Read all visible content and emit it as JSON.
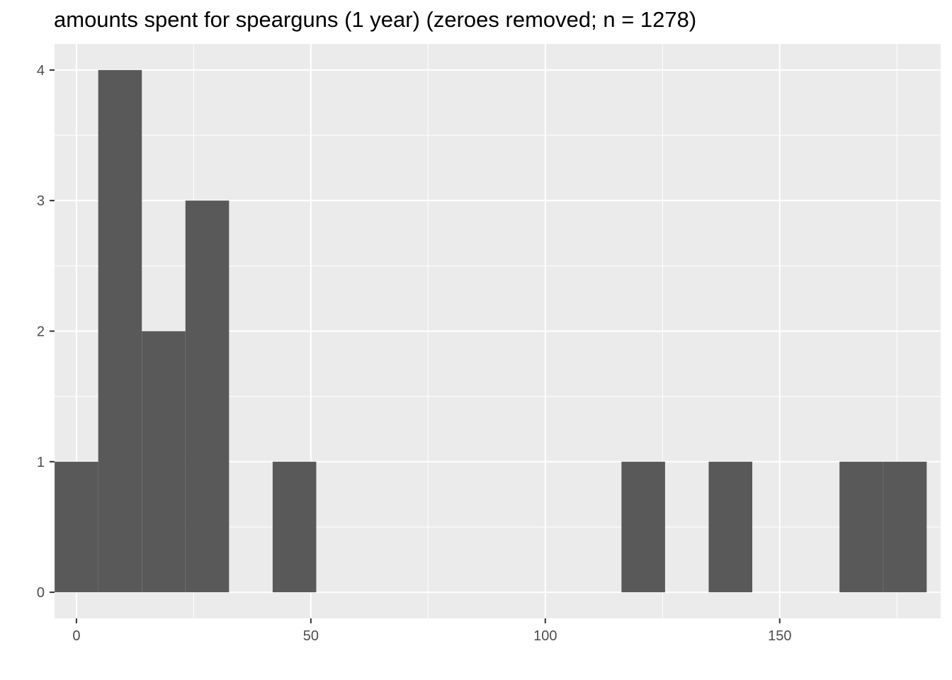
{
  "chart_data": {
    "type": "bar",
    "title": "amounts spent for spearguns (1 year) (zeroes removed; n = 1278)",
    "xlabel": "",
    "ylabel": "",
    "xlim": [
      -4.67,
      184.33
    ],
    "ylim": [
      -0.2,
      4.2
    ],
    "x_ticks": [
      0,
      50,
      100,
      150
    ],
    "y_ticks": [
      0,
      1,
      2,
      3,
      4
    ],
    "bin_width": 9.3,
    "bins": [
      {
        "x_start": -4.65,
        "x_end": 4.65,
        "count": 1
      },
      {
        "x_start": 4.65,
        "x_end": 13.95,
        "count": 4
      },
      {
        "x_start": 13.95,
        "x_end": 23.25,
        "count": 2
      },
      {
        "x_start": 23.25,
        "x_end": 32.55,
        "count": 3
      },
      {
        "x_start": 32.55,
        "x_end": 41.85,
        "count": 0
      },
      {
        "x_start": 41.85,
        "x_end": 51.15,
        "count": 1
      },
      {
        "x_start": 51.15,
        "x_end": 60.45,
        "count": 0
      },
      {
        "x_start": 60.45,
        "x_end": 69.75,
        "count": 0
      },
      {
        "x_start": 69.75,
        "x_end": 79.05,
        "count": 0
      },
      {
        "x_start": 79.05,
        "x_end": 88.35,
        "count": 0
      },
      {
        "x_start": 88.35,
        "x_end": 97.65,
        "count": 0
      },
      {
        "x_start": 97.65,
        "x_end": 106.95,
        "count": 0
      },
      {
        "x_start": 106.95,
        "x_end": 116.25,
        "count": 0
      },
      {
        "x_start": 116.25,
        "x_end": 125.55,
        "count": 1
      },
      {
        "x_start": 125.55,
        "x_end": 134.85,
        "count": 0
      },
      {
        "x_start": 134.85,
        "x_end": 144.15,
        "count": 1
      },
      {
        "x_start": 144.15,
        "x_end": 153.45,
        "count": 0
      },
      {
        "x_start": 153.45,
        "x_end": 162.75,
        "count": 0
      },
      {
        "x_start": 162.75,
        "x_end": 172.05,
        "count": 1
      },
      {
        "x_start": 172.05,
        "x_end": 181.35,
        "count": 1
      }
    ],
    "colors": {
      "panel": "#ebebeb",
      "grid_major": "#ffffff",
      "bar": "#595959",
      "tick_text": "#4d4d4d"
    },
    "grid": true,
    "legend": "none"
  }
}
